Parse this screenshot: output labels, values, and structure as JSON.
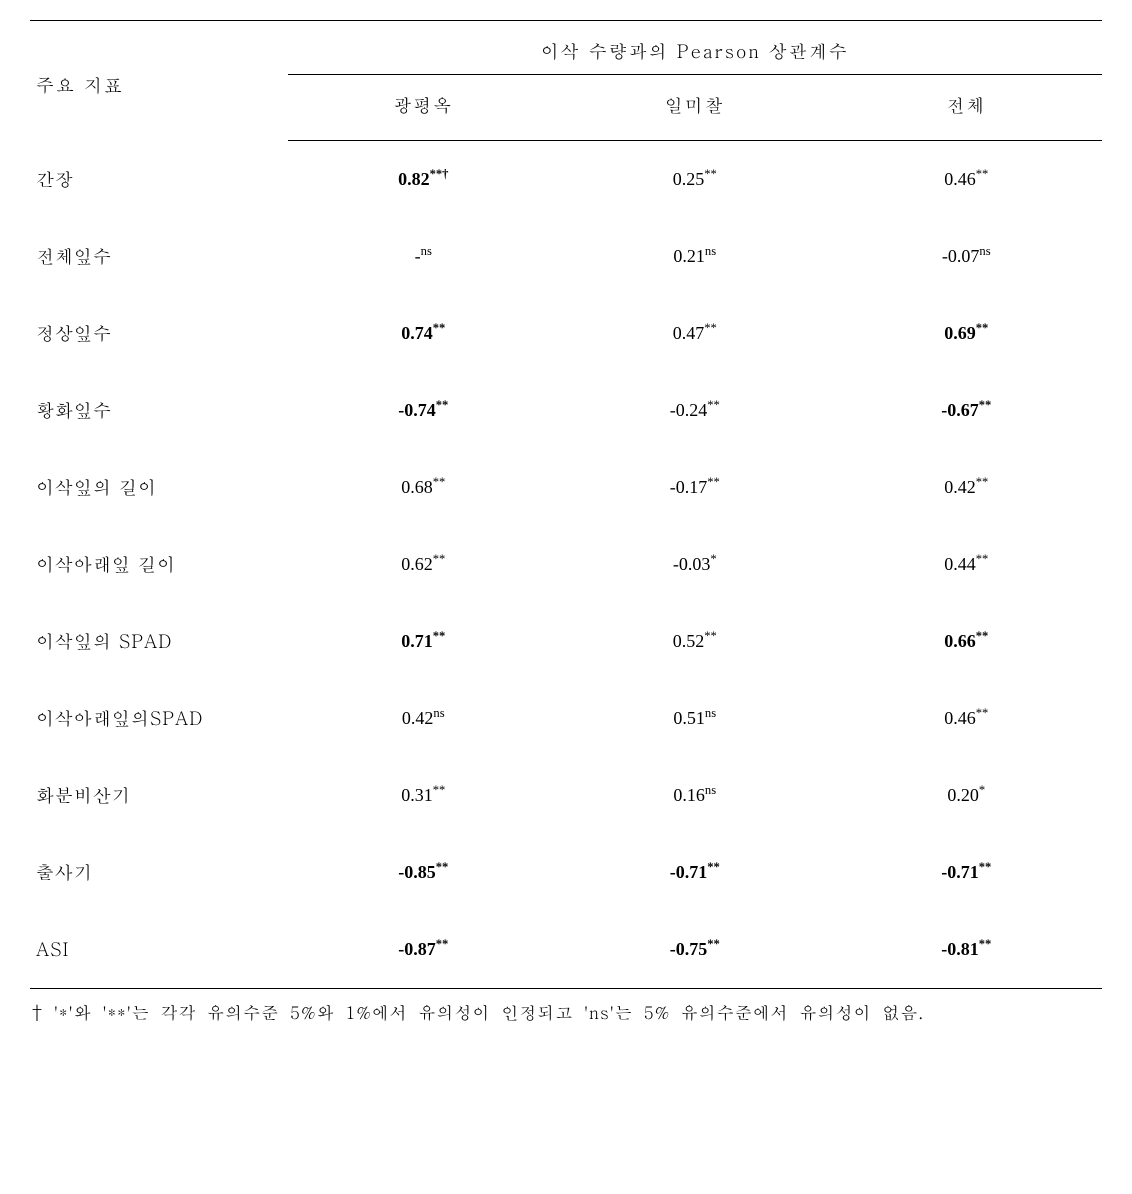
{
  "header": {
    "row_label": "주요 지표",
    "spanner": "이삭 수량과의 Pearson 상관계수",
    "columns": [
      "광평옥",
      "일미찰",
      "전체"
    ]
  },
  "rows": [
    {
      "label": "간장",
      "cells": [
        {
          "value": "0.82",
          "sup": "**†",
          "bold": true
        },
        {
          "value": "0.25",
          "sup": "**",
          "bold": false
        },
        {
          "value": "0.46",
          "sup": "**",
          "bold": false
        }
      ]
    },
    {
      "label": "전체잎수",
      "cells": [
        {
          "value": "-",
          "sup": "ns",
          "bold": false
        },
        {
          "value": "0.21",
          "sup": "ns",
          "bold": false
        },
        {
          "value": "-0.07",
          "sup": "ns",
          "bold": false
        }
      ]
    },
    {
      "label": "정상잎수",
      "cells": [
        {
          "value": "0.74",
          "sup": "**",
          "bold": true
        },
        {
          "value": "0.47",
          "sup": "**",
          "bold": false
        },
        {
          "value": "0.69",
          "sup": "**",
          "bold": true
        }
      ]
    },
    {
      "label": "황화잎수",
      "cells": [
        {
          "value": "-0.74",
          "sup": "**",
          "bold": true
        },
        {
          "value": "-0.24",
          "sup": "**",
          "bold": false
        },
        {
          "value": "-0.67",
          "sup": "**",
          "bold": true
        }
      ]
    },
    {
      "label": "이삭잎의 길이",
      "cells": [
        {
          "value": "0.68",
          "sup": "**",
          "bold": false
        },
        {
          "value": "-0.17",
          "sup": "**",
          "bold": false
        },
        {
          "value": "0.42",
          "sup": "**",
          "bold": false
        }
      ]
    },
    {
      "label": "이삭아래잎 길이",
      "cells": [
        {
          "value": "0.62",
          "sup": "**",
          "bold": false
        },
        {
          "value": "-0.03",
          "sup": "*",
          "bold": false
        },
        {
          "value": "0.44",
          "sup": "**",
          "bold": false
        }
      ]
    },
    {
      "label": "이삭잎의 SPAD",
      "cells": [
        {
          "value": "0.71",
          "sup": "**",
          "bold": true
        },
        {
          "value": "0.52",
          "sup": "**",
          "bold": false
        },
        {
          "value": "0.66",
          "sup": "**",
          "bold": true
        }
      ]
    },
    {
      "label": "이삭아래잎의SPAD",
      "cells": [
        {
          "value": "0.42",
          "sup": "ns",
          "bold": false
        },
        {
          "value": "0.51",
          "sup": "ns",
          "bold": false
        },
        {
          "value": "0.46",
          "sup": "**",
          "bold": false
        }
      ]
    },
    {
      "label": "화분비산기",
      "cells": [
        {
          "value": "0.31",
          "sup": "**",
          "bold": false
        },
        {
          "value": "0.16",
          "sup": "ns",
          "bold": false
        },
        {
          "value": "0.20",
          "sup": "*",
          "bold": false
        }
      ]
    },
    {
      "label": "출사기",
      "cells": [
        {
          "value": "-0.85",
          "sup": "**",
          "bold": true
        },
        {
          "value": "-0.71",
          "sup": "**",
          "bold": true
        },
        {
          "value": "-0.71",
          "sup": "**",
          "bold": true
        }
      ]
    },
    {
      "label": "ASI",
      "cells": [
        {
          "value": "-0.87",
          "sup": "**",
          "bold": true
        },
        {
          "value": "-0.75",
          "sup": "**",
          "bold": true
        },
        {
          "value": "-0.81",
          "sup": "**",
          "bold": true
        }
      ]
    }
  ],
  "footnote": "† '*'와 '**'는 각각 유의수준 5%와 1%에서 유의성이 인정되고 'ns'는 5% 유의수준에서 유의성이 없음."
}
